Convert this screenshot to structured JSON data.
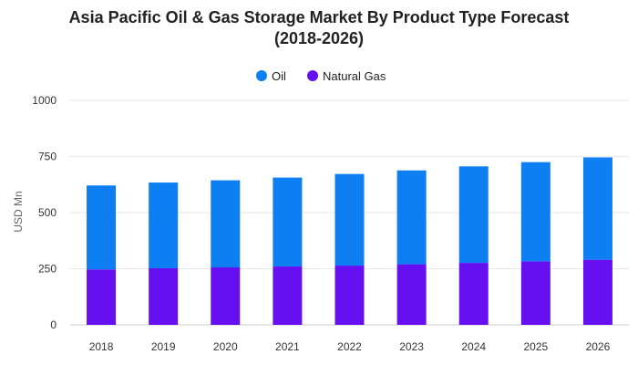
{
  "chart_data": {
    "type": "bar",
    "stacked": true,
    "title_line_1": "Asia Pacific Oil & Gas Storage Market By Product Type Forecast",
    "title_line_2": "(2018-2026)",
    "xlabel": "",
    "ylabel": "USD Mn",
    "categories": [
      "2018",
      "2019",
      "2020",
      "2021",
      "2022",
      "2023",
      "2024",
      "2025",
      "2026"
    ],
    "series": [
      {
        "name": "Natural Gas",
        "color": "#6610f2",
        "values": [
          247,
          252,
          256,
          260,
          264,
          270,
          276,
          283,
          290
        ]
      },
      {
        "name": "Oil",
        "color": "#0d7ff2",
        "values": [
          374,
          382,
          388,
          396,
          408,
          418,
          430,
          442,
          456
        ]
      }
    ],
    "ylim": [
      0,
      1000
    ],
    "yticks": [
      "0",
      "250",
      "500",
      "750",
      "1000"
    ],
    "grid": true,
    "legend_position": "top-center",
    "legend_order": [
      "Oil",
      "Natural Gas"
    ]
  }
}
